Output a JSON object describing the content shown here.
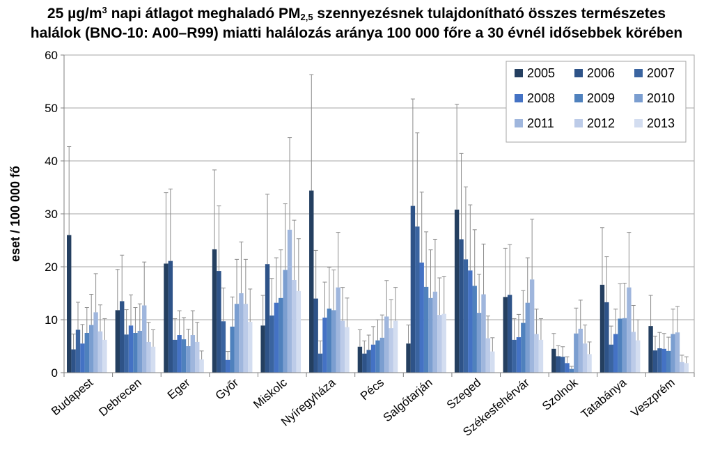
{
  "chart_data": {
    "type": "bar",
    "title": {
      "part1": "25 µg/m",
      "sup": "3",
      "part2": " napi átlagot meghaladó PM",
      "sub": "2,5",
      "part3": " szennyezésnek tulajdonítható összes természetes",
      "line2": "halálok (BNO-10: A00–R99) miatti halálozás aránya 100 000 főre a 30 évnél idősebbek körében"
    },
    "ylabel": "eset / 100 000 fő",
    "xlabel": "",
    "ylim": [
      0,
      60
    ],
    "yticks": [
      0,
      10,
      20,
      30,
      40,
      50,
      60
    ],
    "grid": true,
    "legend_position": "top-right",
    "categories": [
      "Budapest",
      "Debrecen",
      "Eger",
      "Győr",
      "Miskolc",
      "Nyíregyháza",
      "Pécs",
      "Salgótarján",
      "Szeged",
      "Székesfehérvár",
      "Szolnok",
      "Tatabánya",
      "Veszprém"
    ],
    "colors": [
      "#243f60",
      "#2e5388",
      "#3a64a0",
      "#4472c4",
      "#4f81bd",
      "#7b9ed0",
      "#9fb6dd",
      "#bccbe8",
      "#d3ddf0"
    ],
    "series": [
      {
        "name": "2005",
        "values": [
          26.0,
          11.8,
          20.6,
          23.3,
          8.9,
          34.4,
          4.9,
          5.5,
          30.8,
          14.3,
          4.5,
          16.6,
          8.8
        ],
        "err_high": [
          42.7,
          19.5,
          34.0,
          38.3,
          14.6,
          56.3,
          8.1,
          9.0,
          50.7,
          23.5,
          7.4,
          27.4,
          14.6
        ]
      },
      {
        "name": "2006",
        "values": [
          4.4,
          13.5,
          21.1,
          19.2,
          20.5,
          14.0,
          3.6,
          31.5,
          25.2,
          14.7,
          3.1,
          13.3,
          4.2
        ],
        "err_high": [
          7.3,
          22.2,
          34.7,
          31.5,
          33.7,
          23.1,
          6.0,
          51.7,
          41.4,
          24.2,
          5.1,
          21.9,
          6.9
        ]
      },
      {
        "name": "2007",
        "values": [
          8.1,
          7.2,
          6.2,
          9.7,
          10.8,
          3.6,
          4.3,
          27.6,
          21.4,
          6.2,
          3.0,
          5.3,
          4.6
        ],
        "err_high": [
          13.3,
          11.9,
          10.2,
          16.0,
          17.8,
          6.0,
          7.1,
          45.3,
          35.1,
          10.2,
          4.9,
          8.8,
          7.6
        ]
      },
      {
        "name": "2008",
        "values": [
          5.5,
          8.9,
          7.1,
          2.4,
          13.2,
          10.4,
          5.3,
          20.8,
          19.3,
          6.7,
          1.8,
          7.3,
          4.5
        ],
        "err_high": [
          9.1,
          14.7,
          11.7,
          4.0,
          21.7,
          17.1,
          8.7,
          34.1,
          31.7,
          11.0,
          3.0,
          12.0,
          7.4
        ]
      },
      {
        "name": "2009",
        "values": [
          7.5,
          7.5,
          6.3,
          8.7,
          14.1,
          12.1,
          6.1,
          16.2,
          16.4,
          9.4,
          0.7,
          10.2,
          4.1
        ],
        "err_high": [
          12.3,
          12.3,
          10.4,
          14.3,
          23.2,
          19.9,
          10.0,
          26.6,
          27.0,
          15.5,
          1.2,
          16.8,
          6.7
        ]
      },
      {
        "name": "2010",
        "values": [
          9.0,
          7.9,
          5.0,
          13.0,
          19.4,
          11.8,
          6.6,
          14.1,
          11.3,
          13.2,
          7.4,
          10.3,
          7.3
        ],
        "err_high": [
          14.8,
          13.0,
          8.2,
          21.4,
          31.9,
          19.4,
          10.9,
          23.2,
          18.6,
          21.7,
          12.2,
          16.9,
          12.0
        ]
      },
      {
        "name": "2011",
        "values": [
          11.4,
          12.7,
          7.1,
          15.0,
          27.0,
          16.1,
          10.6,
          15.3,
          14.8,
          17.6,
          8.3,
          16.1,
          7.6
        ],
        "err_high": [
          18.7,
          20.9,
          11.7,
          24.7,
          44.4,
          26.5,
          17.4,
          25.2,
          24.3,
          29.0,
          13.7,
          26.5,
          12.5
        ]
      },
      {
        "name": "2012",
        "values": [
          7.8,
          5.8,
          5.8,
          13.0,
          17.5,
          9.8,
          8.4,
          10.9,
          6.5,
          7.3,
          5.5,
          7.7,
          2.0
        ],
        "err_high": [
          12.8,
          9.5,
          9.5,
          21.4,
          28.8,
          16.1,
          13.8,
          17.9,
          10.7,
          12.0,
          9.0,
          12.7,
          3.3
        ]
      },
      {
        "name": "2013",
        "values": [
          6.2,
          4.9,
          2.5,
          9.6,
          15.4,
          8.6,
          9.8,
          11.1,
          4.0,
          6.2,
          3.5,
          6.1,
          1.8
        ],
        "err_high": [
          10.2,
          8.1,
          4.1,
          15.8,
          25.3,
          14.1,
          16.1,
          18.2,
          6.6,
          10.2,
          5.8,
          10.0,
          3.0
        ]
      }
    ]
  }
}
